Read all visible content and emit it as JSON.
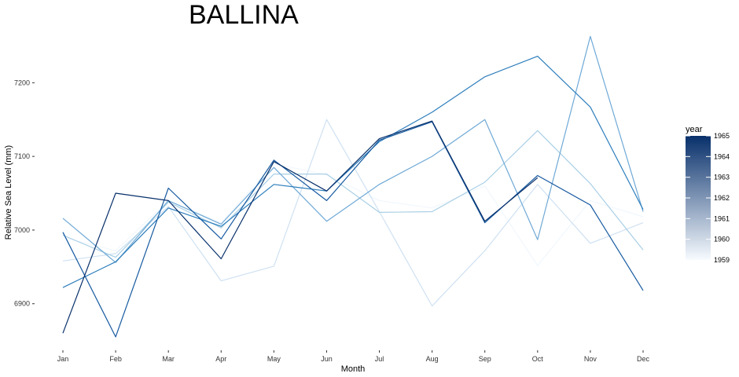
{
  "chart_data": {
    "type": "line",
    "title": "BALLINA",
    "xlabel": "Month",
    "ylabel": "Relative Sea Level (mm)",
    "categories": [
      "Jan",
      "Feb",
      "Mar",
      "Apr",
      "May",
      "Jun",
      "Jul",
      "Aug",
      "Sep",
      "Oct",
      "Nov",
      "Dec"
    ],
    "ylim": [
      6840,
      7275
    ],
    "yticks": [
      6900,
      7000,
      7100,
      7200
    ],
    "grid": false,
    "legend": {
      "title": "year",
      "position": "right",
      "labels": [
        "1965",
        "1964",
        "1963",
        "1962",
        "1961",
        "1960",
        "1959"
      ],
      "min": 1959,
      "max": 1965,
      "color_low": "#f7fbff",
      "color_high": "#08306b"
    },
    "series": [
      {
        "year": 1959,
        "color": "#f1f7fd",
        "values": [
          6990,
          6972,
          7040,
          7010,
          7090,
          7075,
          7040,
          7030,
          7060,
          6952,
          7040,
          7018
        ]
      },
      {
        "year": 1960,
        "color": "#cfe1f2",
        "values": [
          6958,
          6968,
          7032,
          6931,
          6951,
          7150,
          7025,
          6897,
          6972,
          7062,
          6982,
          7010
        ]
      },
      {
        "year": 1961,
        "color": "#a9cfe5",
        "values": [
          6993,
          6963,
          7038,
          7003,
          7076,
          7076,
          7024,
          7025,
          7065,
          7135,
          7063,
          6973
        ]
      },
      {
        "year": 1962,
        "color": "#6fa9d6",
        "values": [
          7016,
          6956,
          7040,
          7008,
          7085,
          7012,
          7062,
          7100,
          7150,
          6987,
          7263,
          7025
        ]
      },
      {
        "year": 1963,
        "color": "#2d7ebc",
        "values": [
          6922,
          6957,
          7030,
          7005,
          7062,
          7053,
          7120,
          7160,
          7208,
          7236,
          7167,
          7028
        ]
      },
      {
        "year": 1964,
        "color": "#165aa0",
        "values": [
          6997,
          6855,
          7057,
          6988,
          7095,
          7040,
          7122,
          7147,
          7010,
          7074,
          7034,
          6918
        ]
      },
      {
        "year": 1965,
        "color": "#08306b",
        "values": [
          6860,
          7050,
          7040,
          6961,
          7093,
          7053,
          7124,
          7148,
          7012,
          7071,
          null,
          null
        ]
      }
    ]
  }
}
